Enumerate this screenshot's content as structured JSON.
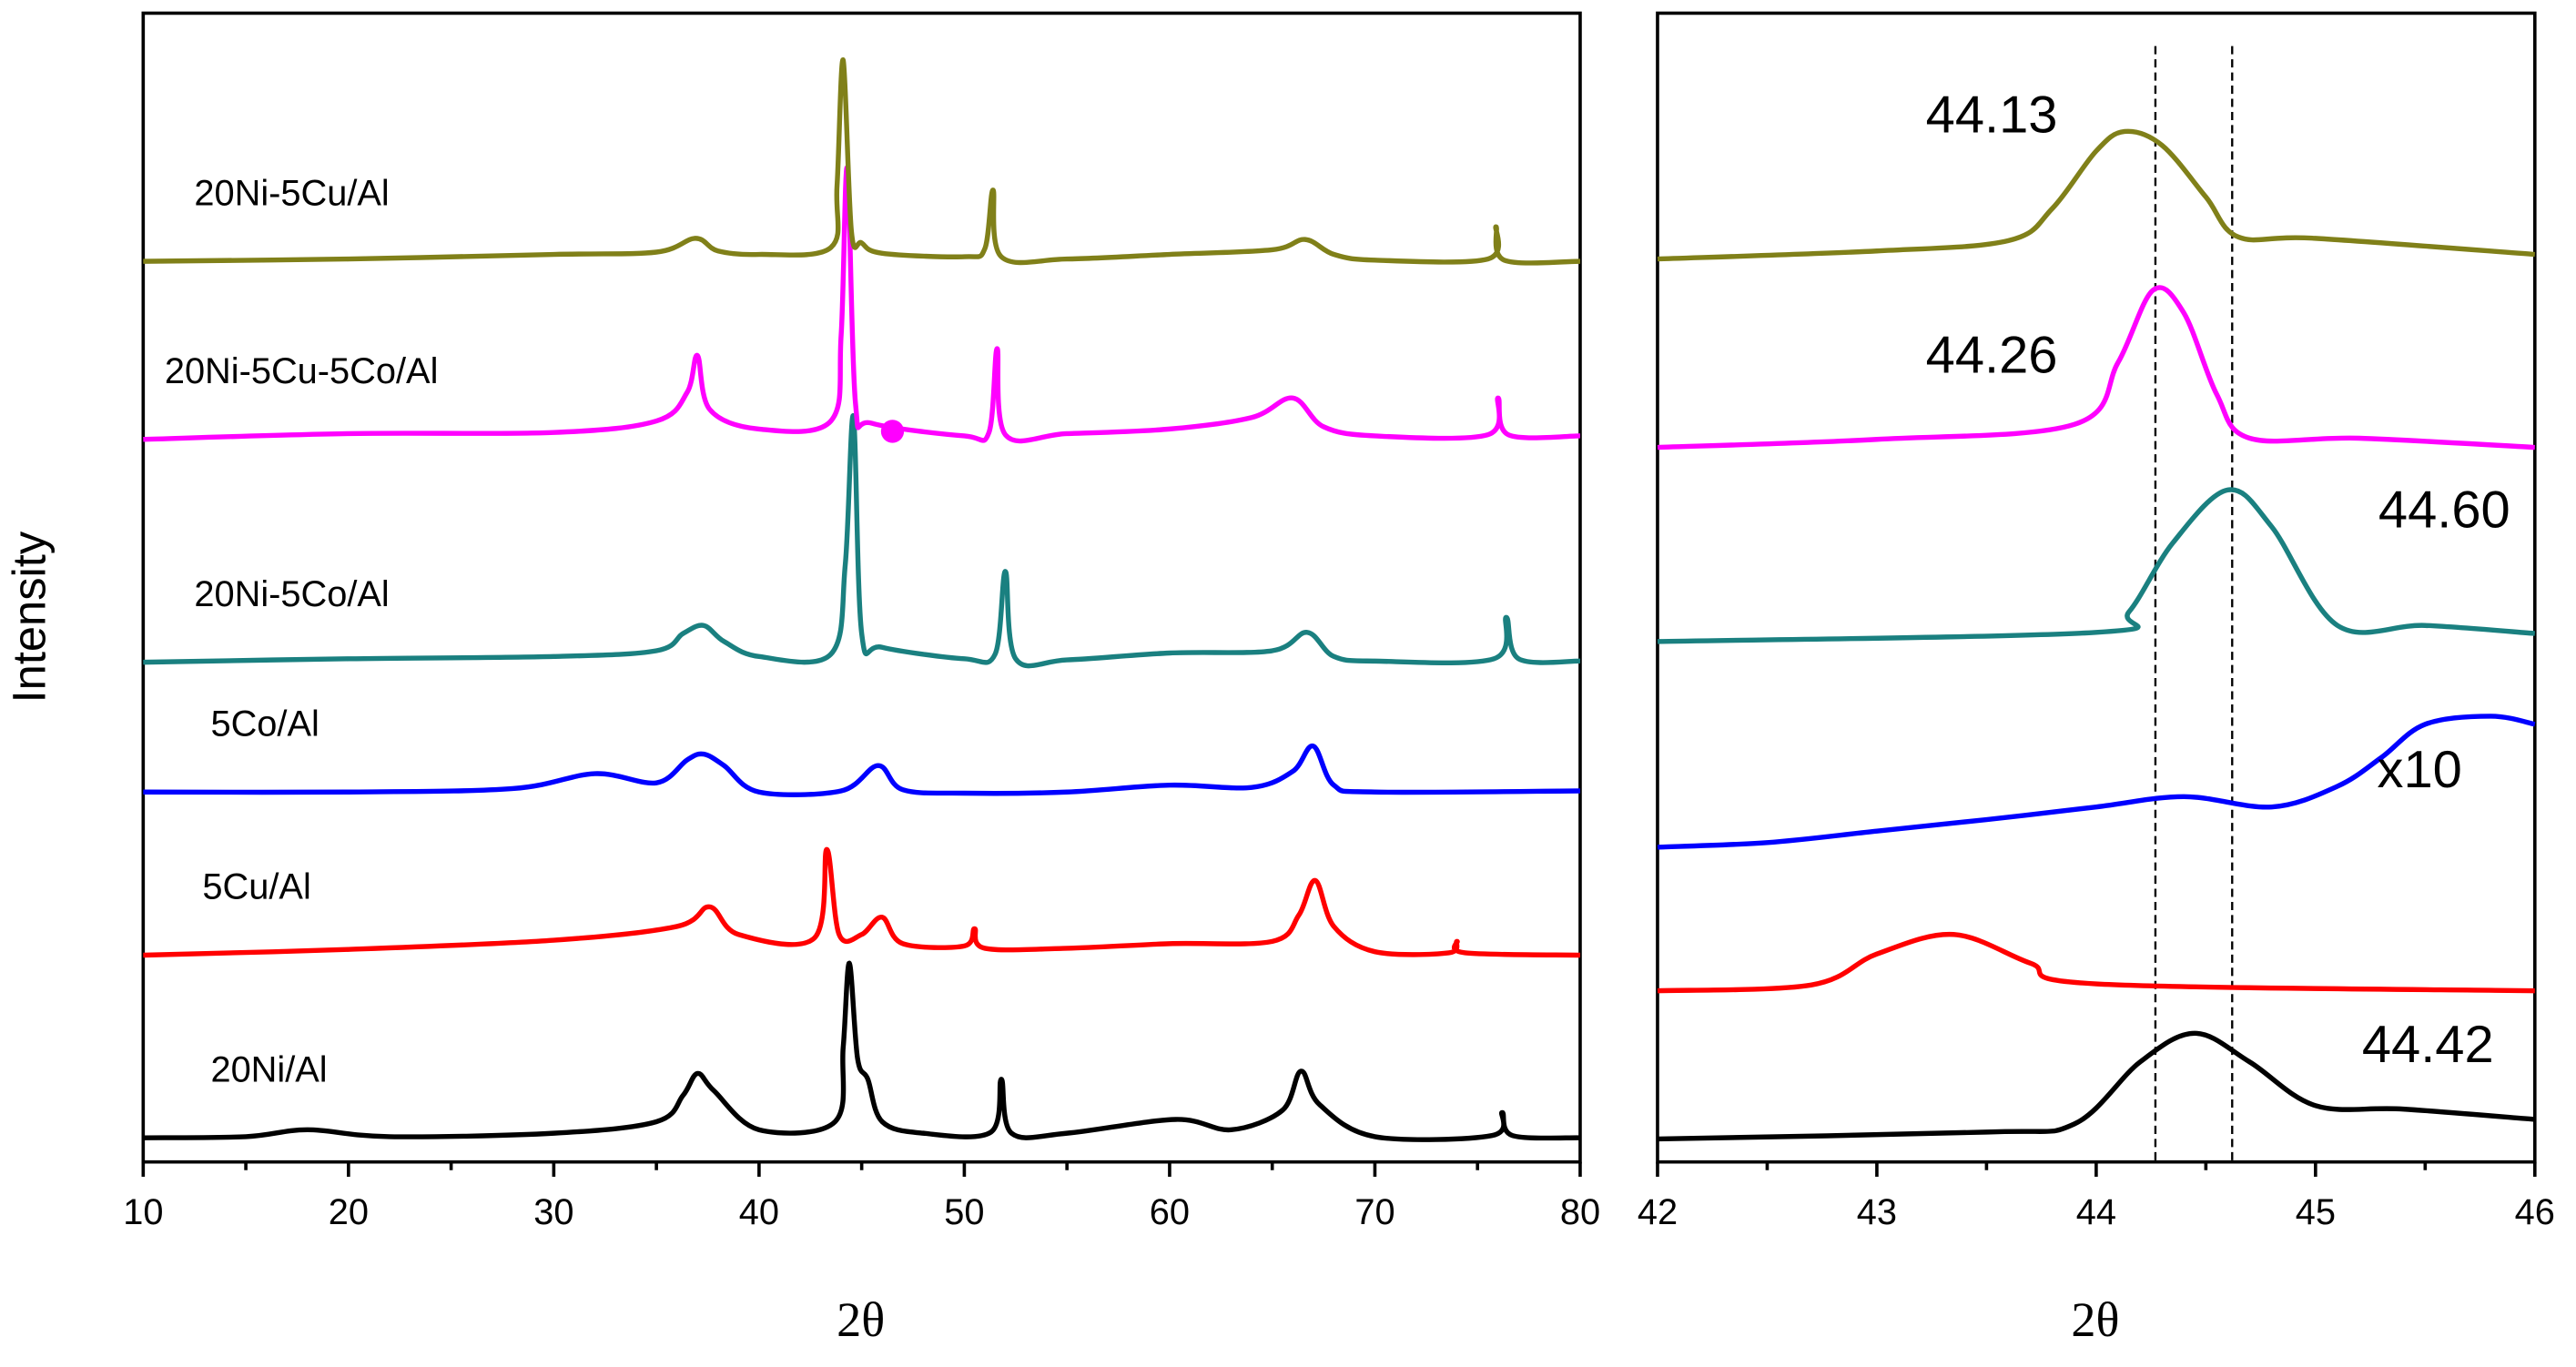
{
  "chart_data": [
    {
      "type": "line",
      "ylabel": "Intensity",
      "xlabel": "2θ",
      "xlim": [
        10,
        80
      ],
      "xticks": [
        10,
        20,
        30,
        40,
        50,
        60,
        70,
        80
      ],
      "xminorticks": [
        15,
        25,
        35,
        45,
        55,
        65,
        75
      ],
      "ylim": [
        0,
        100
      ],
      "series": [
        {
          "name": "20Ni/Al",
          "color": "#000000",
          "x": [
            10,
            15,
            18,
            22,
            30,
            35,
            36.3,
            37,
            37.8,
            40,
            43.7,
            44.1,
            44.4,
            44.8,
            45.3,
            46,
            48,
            51.3,
            51.8,
            52.3,
            55,
            60.3,
            63,
            65.5,
            66.4,
            67.3,
            70,
            75.7,
            76.2,
            76.7,
            80
          ],
          "values": [
            2.1,
            2.2,
            2.8,
            2.2,
            2.5,
            3.5,
            5.8,
            7.7,
            6.2,
            2.8,
            3.5,
            10,
            17.3,
            9,
            7.2,
            3.5,
            2.5,
            2.6,
            7.2,
            2.5,
            2.5,
            3.7,
            2.8,
            4.5,
            7.9,
            5,
            2.2,
            2.3,
            4.3,
            2.3,
            2.1
          ]
        },
        {
          "name": "5Cu/Al",
          "color": "#ff0000",
          "x": [
            10,
            20,
            30,
            36,
            37.6,
            39,
            42.7,
            43.3,
            43.9,
            45,
            46,
            47,
            50,
            50.5,
            51,
            55,
            60,
            65,
            66.3,
            67.1,
            68,
            70,
            73.6,
            74,
            74.4,
            80
          ],
          "values": [
            18,
            18.5,
            19.3,
            20.5,
            22.2,
            19.8,
            19.5,
            27.2,
            19.8,
            19.8,
            21.3,
            19,
            18.8,
            20.3,
            18.6,
            18.6,
            19,
            19.2,
            21.5,
            24.5,
            20.5,
            18.3,
            18.2,
            19.2,
            18.2,
            18
          ]
        },
        {
          "name": "5Co/Al",
          "color": "#0000ff",
          "x": [
            10,
            20,
            28,
            32,
            35,
            36.5,
            37.3,
            38.3,
            40,
            44,
            45.8,
            47,
            50,
            55,
            60,
            64,
            66,
            67,
            68,
            70,
            80
          ],
          "values": [
            32.2,
            32.2,
            32.5,
            33.8,
            33,
            35,
            35.5,
            34.5,
            32.2,
            32.3,
            34.5,
            32.4,
            32.1,
            32.2,
            32.8,
            32.6,
            34,
            36.2,
            32.8,
            32.2,
            32.3
          ]
        },
        {
          "name": "20Ni-5Co/Al",
          "color": "#1a8080",
          "x": [
            10,
            20,
            30,
            35,
            36.3,
            37.3,
            38.3,
            40,
            43.5,
            44.2,
            44.6,
            45,
            46,
            50,
            51.5,
            52,
            52.5,
            55,
            60,
            65,
            66.7,
            68,
            70,
            75.8,
            76.4,
            77,
            80
          ],
          "values": [
            43.5,
            43.8,
            44,
            44.5,
            46,
            46.7,
            45.3,
            44,
            44.2,
            52,
            64.9,
            46,
            44.8,
            43.8,
            44.2,
            51.4,
            43.8,
            43.7,
            44.3,
            44.5,
            46.1,
            44,
            43.6,
            43.8,
            47.4,
            43.8,
            43.6
          ]
        },
        {
          "name": "20Ni-5Cu-5Co/Al",
          "color": "#ff00ff",
          "x": [
            10,
            20,
            30,
            35,
            36.5,
            37,
            37.6,
            40,
            43.5,
            44,
            44.3,
            44.7,
            45.5,
            50,
            51.2,
            51.6,
            52,
            55,
            60,
            64,
            66,
            67.5,
            70,
            75.5,
            76,
            76.5,
            80
          ],
          "values": [
            62.9,
            63.4,
            63.5,
            64.5,
            67,
            70.2,
            65.5,
            63.8,
            64.5,
            72,
            86.5,
            66,
            64.3,
            63.2,
            63.5,
            70.8,
            63.3,
            63.4,
            63.8,
            64.8,
            66.5,
            64,
            63.2,
            63.3,
            66.5,
            63.3,
            63.2
          ]
        },
        {
          "name": "20Ni-5Cu/Al",
          "color": "#808019",
          "x": [
            10,
            20,
            30,
            35,
            36.9,
            38,
            40,
            43.5,
            43.8,
            44.1,
            44.5,
            45,
            46,
            50,
            51,
            51.4,
            51.8,
            55,
            60,
            65,
            66.6,
            68,
            70,
            75.5,
            75.9,
            76.3,
            80
          ],
          "values": [
            78.4,
            78.6,
            79,
            79.2,
            80.4,
            79.3,
            79,
            79.6,
            85,
            95.9,
            81,
            80,
            79.1,
            78.8,
            79.5,
            84.6,
            78.8,
            78.6,
            79,
            79.4,
            80.3,
            79,
            78.5,
            78.6,
            81.4,
            78.5,
            78.4
          ]
        }
      ],
      "markers": [
        {
          "x": 46.5,
          "y": 63.6,
          "color": "#ff00ff"
        }
      ]
    },
    {
      "type": "line",
      "xlabel": "2θ",
      "xlim": [
        42,
        46
      ],
      "xticks": [
        42,
        43,
        44,
        45,
        46
      ],
      "xminorticks": [
        42.5,
        43.5,
        44.5,
        45.5
      ],
      "ylim": [
        0,
        100
      ],
      "vlines": [
        44.27,
        44.62
      ],
      "series": [
        {
          "color": "#000000",
          "x": [
            42,
            43.5,
            43.9,
            44.2,
            44.45,
            44.7,
            45,
            45.4,
            46
          ],
          "values": [
            2,
            2.6,
            3.3,
            8.7,
            11.2,
            8.7,
            4.9,
            4.6,
            3.7
          ]
        },
        {
          "color": "#ff0000",
          "x": [
            42,
            42.7,
            43,
            43.35,
            43.7,
            44,
            46
          ],
          "values": [
            14.9,
            15.4,
            18.1,
            19.8,
            17.3,
            15.5,
            14.9
          ]
        },
        {
          "color": "#0000ff",
          "x": [
            42,
            42.5,
            43,
            43.5,
            44,
            44.4,
            44.8,
            45.1,
            45.3,
            45.5,
            45.8,
            46
          ],
          "values": [
            27.4,
            27.8,
            28.8,
            29.8,
            30.9,
            31.8,
            30.9,
            32.7,
            35.2,
            38.1,
            38.8,
            38.1
          ]
        },
        {
          "color": "#1a8080",
          "x": [
            42,
            44,
            44.15,
            44.35,
            44.6,
            44.8,
            45.1,
            45.5,
            46
          ],
          "values": [
            45.3,
            46.1,
            47.9,
            53.9,
            58.5,
            55.3,
            46.7,
            46.7,
            46
          ]
        },
        {
          "color": "#ff00ff",
          "x": [
            42,
            43,
            43.9,
            44.1,
            44.26,
            44.4,
            44.55,
            44.7,
            45.2,
            46
          ],
          "values": [
            62.2,
            62.9,
            64.2,
            69.6,
            75.9,
            73.9,
            66.8,
            63,
            63,
            62.2
          ]
        },
        {
          "color": "#808019",
          "x": [
            42,
            43,
            43.6,
            43.8,
            44,
            44.13,
            44.3,
            44.5,
            44.65,
            45,
            46
          ],
          "values": [
            78.6,
            79.3,
            80.2,
            83,
            88,
            89.7,
            88.5,
            84,
            80.5,
            80.4,
            79
          ]
        }
      ],
      "annotations": [
        "44.42",
        "44.13",
        "44.26",
        "44.60",
        "x10"
      ]
    }
  ]
}
